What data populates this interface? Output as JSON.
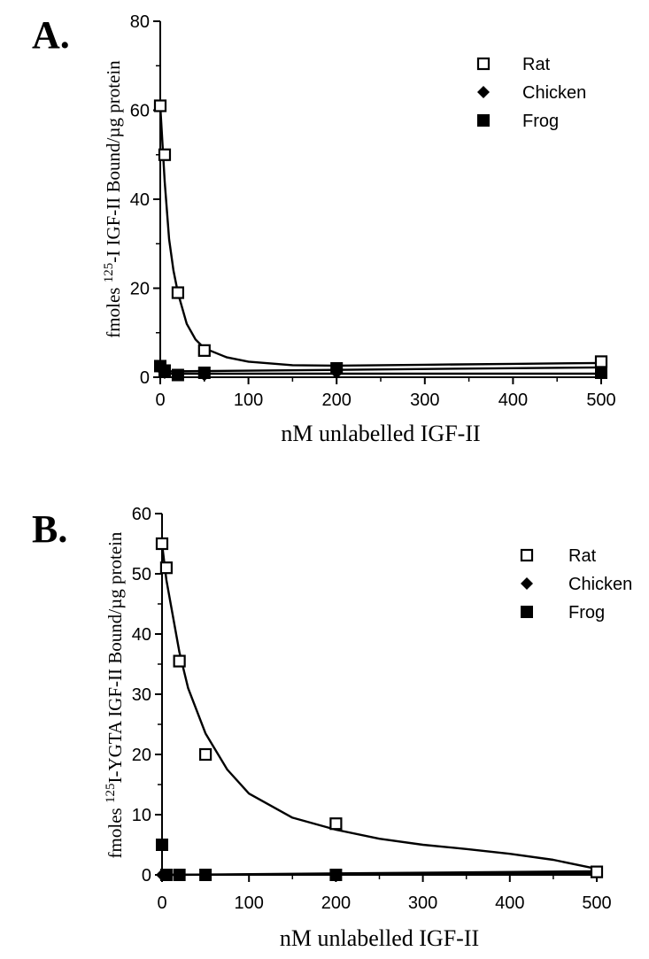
{
  "chart_data": [
    {
      "type": "scatter",
      "panel_label": "A.",
      "ylabel_parts": [
        "fmoles ",
        "125",
        "-I IGF-II Bound/µg protein"
      ],
      "xlabel": "nM unlabelled IGF-II",
      "xlim": [
        0,
        500
      ],
      "ylim": [
        0,
        80
      ],
      "xticks": [
        0,
        100,
        200,
        300,
        400,
        500
      ],
      "yticks": [
        0,
        20,
        40,
        60,
        80
      ],
      "legend_position": "top-right",
      "grid": false,
      "series": [
        {
          "name": "Rat",
          "marker": "open-square",
          "x": [
            0,
            5,
            20,
            50,
            500
          ],
          "y": [
            61,
            50,
            19,
            6,
            3.5
          ],
          "fit": {
            "x": [
              0,
              5,
              10,
              15,
              20,
              30,
              40,
              50,
              75,
              100,
              150,
              200,
              300,
              400,
              500
            ],
            "y": [
              61,
              44,
              31,
              24,
              19,
              12,
              8.5,
              6.5,
              4.5,
              3.5,
              2.7,
              2.6,
              2.8,
              3.0,
              3.2
            ]
          }
        },
        {
          "name": "Chicken",
          "marker": "diamond",
          "x": [
            0,
            5,
            20,
            50,
            200,
            500
          ],
          "y": [
            2,
            1,
            0.5,
            0.5,
            1,
            0.8
          ],
          "fit": {
            "x": [
              0,
              500
            ],
            "y": [
              0.8,
              0.8
            ]
          }
        },
        {
          "name": "Frog",
          "marker": "filled-square",
          "x": [
            0,
            5,
            20,
            50,
            200,
            500
          ],
          "y": [
            2.5,
            1.5,
            0.5,
            1,
            2,
            1
          ],
          "fit": {
            "x": [
              0,
              500
            ],
            "y": [
              1.3,
              2.2
            ]
          }
        }
      ]
    },
    {
      "type": "scatter",
      "panel_label": "B.",
      "ylabel_parts": [
        "fmoles ",
        "125",
        "I-YGTA IGF-II Bound/µg protein"
      ],
      "xlabel": "nM unlabelled IGF-II",
      "xlim": [
        0,
        500
      ],
      "ylim": [
        0,
        60
      ],
      "xticks": [
        0,
        100,
        200,
        300,
        400,
        500
      ],
      "yticks": [
        0,
        10,
        20,
        30,
        40,
        50,
        60
      ],
      "legend_position": "top-right",
      "grid": false,
      "series": [
        {
          "name": "Rat",
          "marker": "open-square",
          "x": [
            0,
            5,
            20,
            50,
            200,
            500
          ],
          "y": [
            55,
            51,
            35.5,
            20,
            8.5,
            0.5
          ],
          "fit": {
            "x": [
              0,
              5,
              10,
              20,
              30,
              50,
              75,
              100,
              150,
              200,
              250,
              300,
              350,
              400,
              450,
              500
            ],
            "y": [
              55,
              49,
              45,
              37,
              31,
              23.5,
              17.5,
              13.5,
              9.5,
              7.5,
              6,
              5,
              4.3,
              3.5,
              2.5,
              1
            ]
          }
        },
        {
          "name": "Chicken",
          "marker": "diamond",
          "x": [
            0,
            5,
            20,
            50,
            200,
            500
          ],
          "y": [
            0,
            0,
            0,
            0,
            0,
            0.5
          ],
          "fit": {
            "x": [
              0,
              500
            ],
            "y": [
              0,
              0.3
            ]
          }
        },
        {
          "name": "Frog",
          "marker": "filled-square",
          "x": [
            0,
            5,
            20,
            50,
            200,
            500
          ],
          "y": [
            5,
            0,
            0,
            0,
            0,
            0.5
          ],
          "fit": {
            "x": [
              0,
              500
            ],
            "y": [
              0,
              0.6
            ]
          }
        }
      ]
    }
  ]
}
